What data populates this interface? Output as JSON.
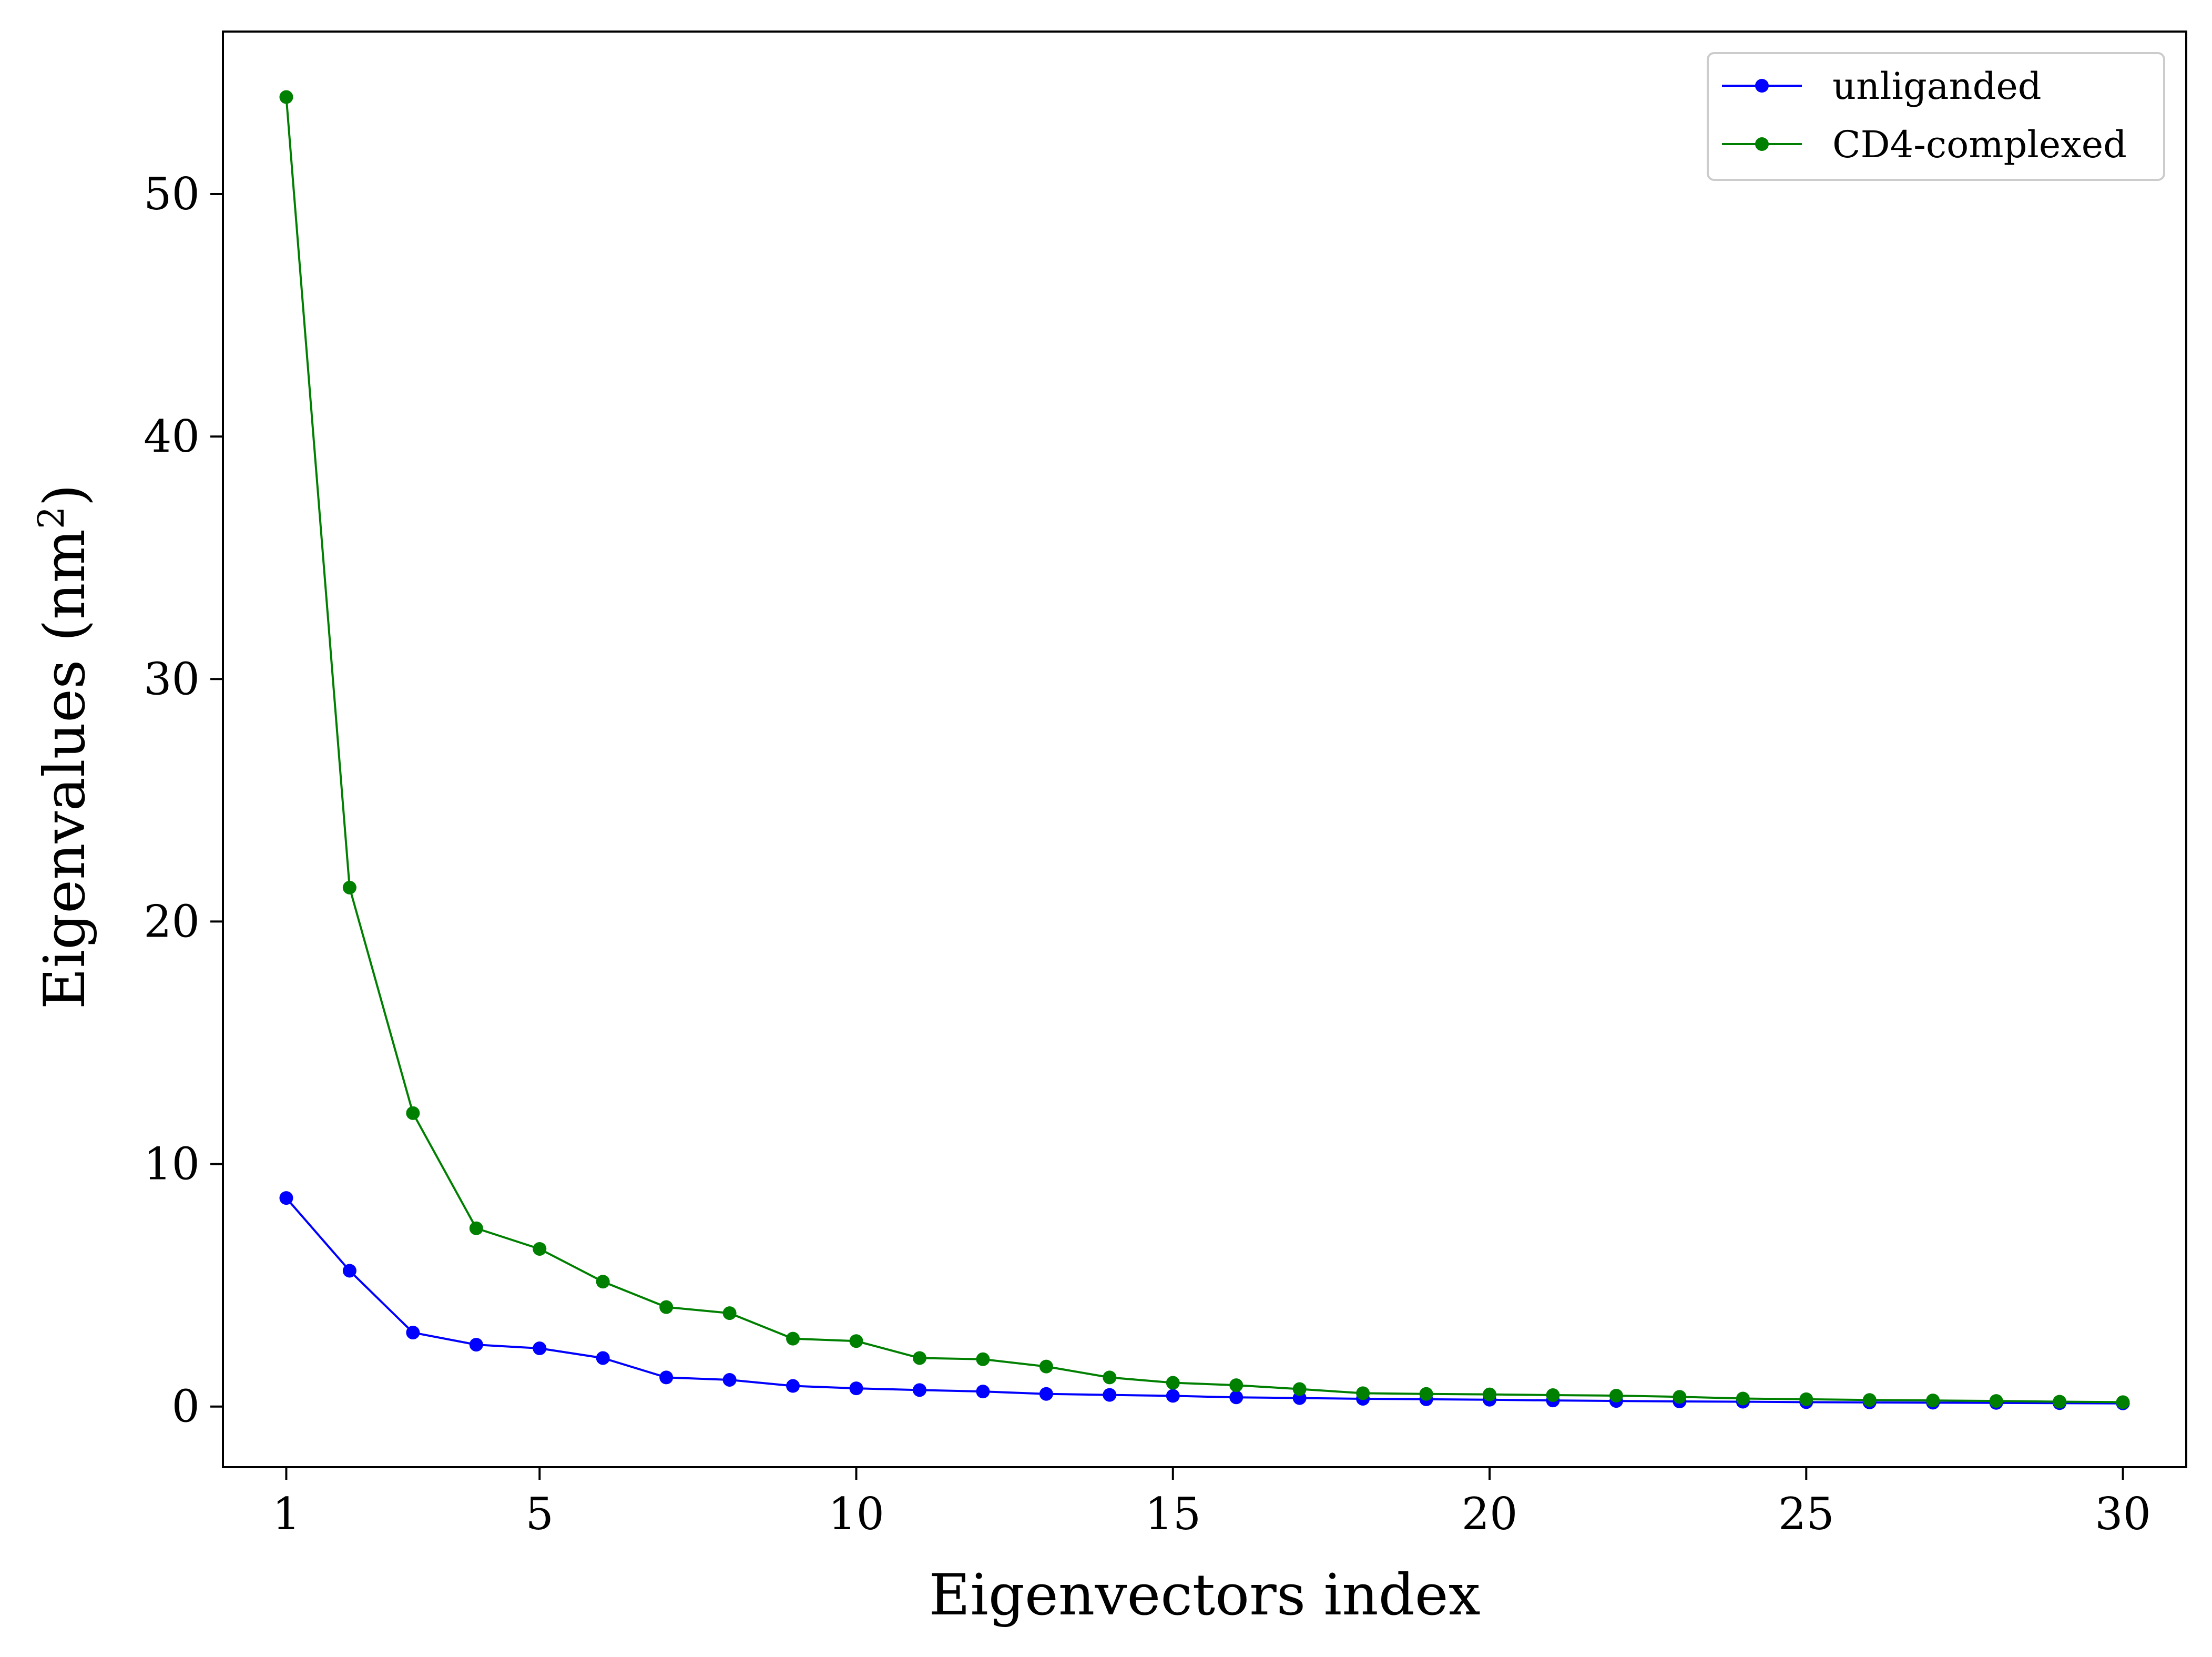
{
  "chart_data": {
    "type": "line",
    "xlabel": "Eigenvectors index",
    "ylabel": "Eigenvalues (nm",
    "ylabel_superscript": "2",
    "ylabel_suffix": ")",
    "xlim": [
      0,
      31
    ],
    "ylim": [
      -2.5,
      56.7
    ],
    "xticks": [
      1,
      5,
      10,
      15,
      20,
      25,
      30
    ],
    "yticks": [
      0,
      10,
      20,
      30,
      40,
      50
    ],
    "grid": false,
    "legend_position": "top-right",
    "x": [
      1,
      2,
      3,
      4,
      5,
      6,
      7,
      8,
      9,
      10,
      11,
      12,
      13,
      14,
      15,
      16,
      17,
      18,
      19,
      20,
      21,
      22,
      23,
      24,
      25,
      26,
      27,
      28,
      29,
      30
    ],
    "series": [
      {
        "name": "unliganded",
        "color": "#0000ff",
        "values": [
          8.6,
          5.6,
          3.05,
          2.55,
          2.4,
          2.0,
          1.2,
          1.1,
          0.85,
          0.75,
          0.68,
          0.62,
          0.52,
          0.48,
          0.44,
          0.38,
          0.35,
          0.32,
          0.3,
          0.28,
          0.25,
          0.23,
          0.21,
          0.2,
          0.18,
          0.17,
          0.16,
          0.15,
          0.14,
          0.13
        ]
      },
      {
        "name": "CD4-complexed",
        "color": "#008000",
        "values": [
          54.0,
          21.4,
          12.1,
          7.35,
          6.5,
          5.15,
          4.1,
          3.85,
          2.8,
          2.7,
          2.0,
          1.95,
          1.65,
          1.2,
          0.98,
          0.88,
          0.72,
          0.55,
          0.52,
          0.5,
          0.47,
          0.45,
          0.4,
          0.33,
          0.3,
          0.27,
          0.25,
          0.23,
          0.2,
          0.18
        ]
      }
    ]
  }
}
